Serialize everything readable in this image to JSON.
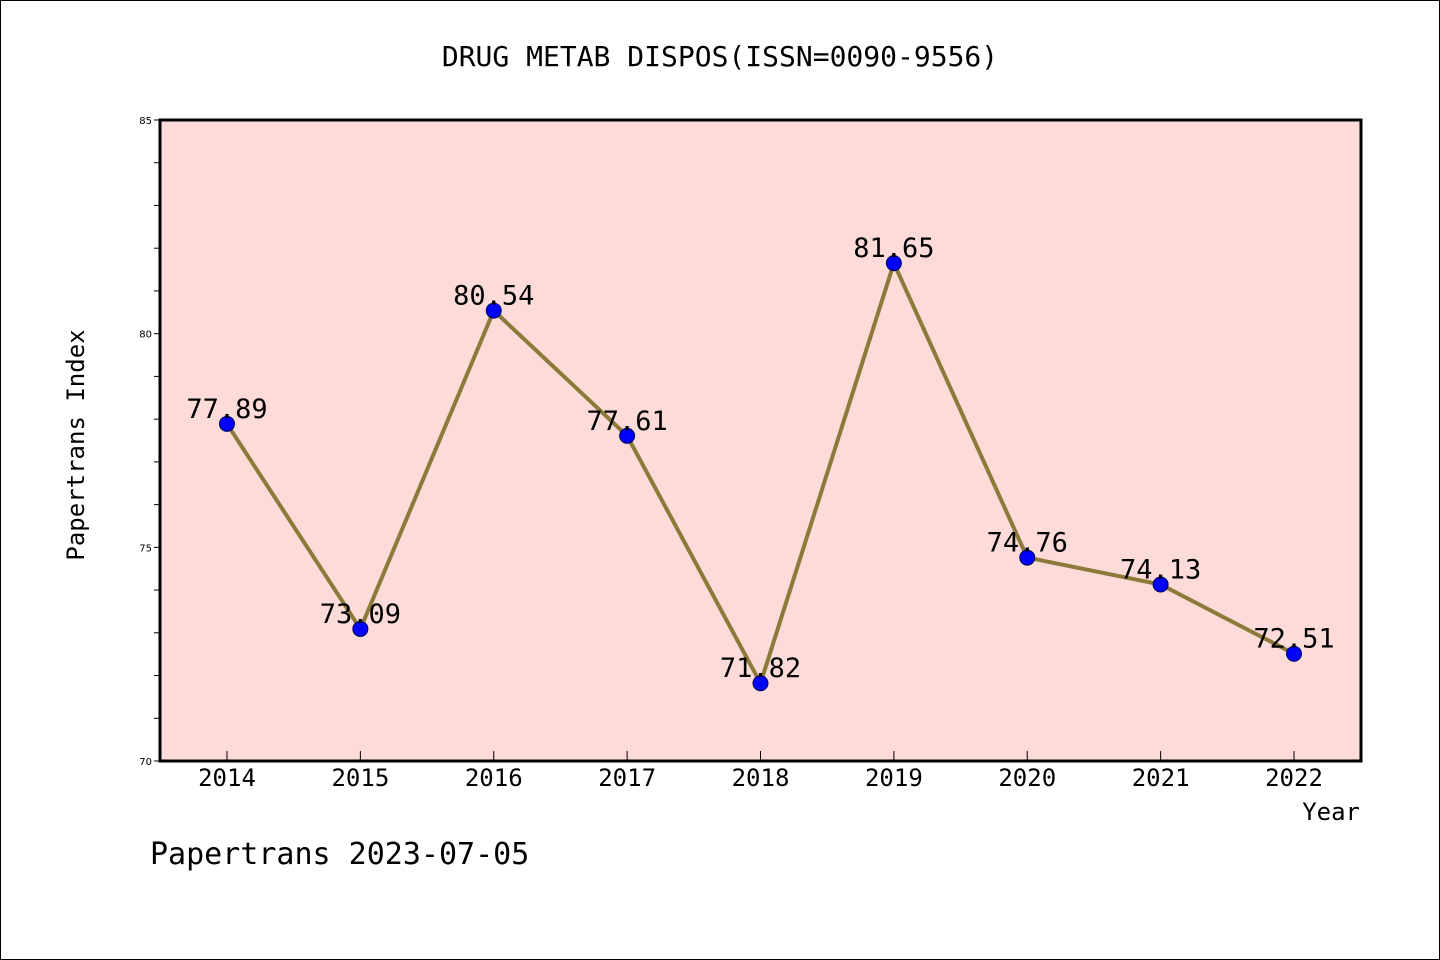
{
  "chart_data": {
    "type": "line",
    "title": "DRUG METAB DISPOS(ISSN=0090-9556)",
    "xlabel": "Year",
    "ylabel": "Papertrans Index",
    "categories": [
      "2014",
      "2015",
      "2016",
      "2017",
      "2018",
      "2019",
      "2020",
      "2021",
      "2022"
    ],
    "series": [
      {
        "values": [
          77.89,
          73.09,
          80.54,
          77.61,
          71.82,
          81.65,
          74.76,
          74.13,
          72.51
        ],
        "data_labels": [
          "77.89",
          "73.09",
          "80.54",
          "77.61",
          "71.82",
          "81.65",
          "74.76",
          "74.13",
          "72.51"
        ]
      }
    ],
    "ylim": [
      70,
      85
    ],
    "yticks": [
      "70",
      "75",
      "80",
      "85"
    ],
    "grid": false,
    "legend": "none",
    "colors": {
      "plot_background": "#fddbd8",
      "line": "#8c7a3a",
      "marker": "#0000ff"
    }
  },
  "footer": {
    "text": "Papertrans 2023-07-05"
  }
}
